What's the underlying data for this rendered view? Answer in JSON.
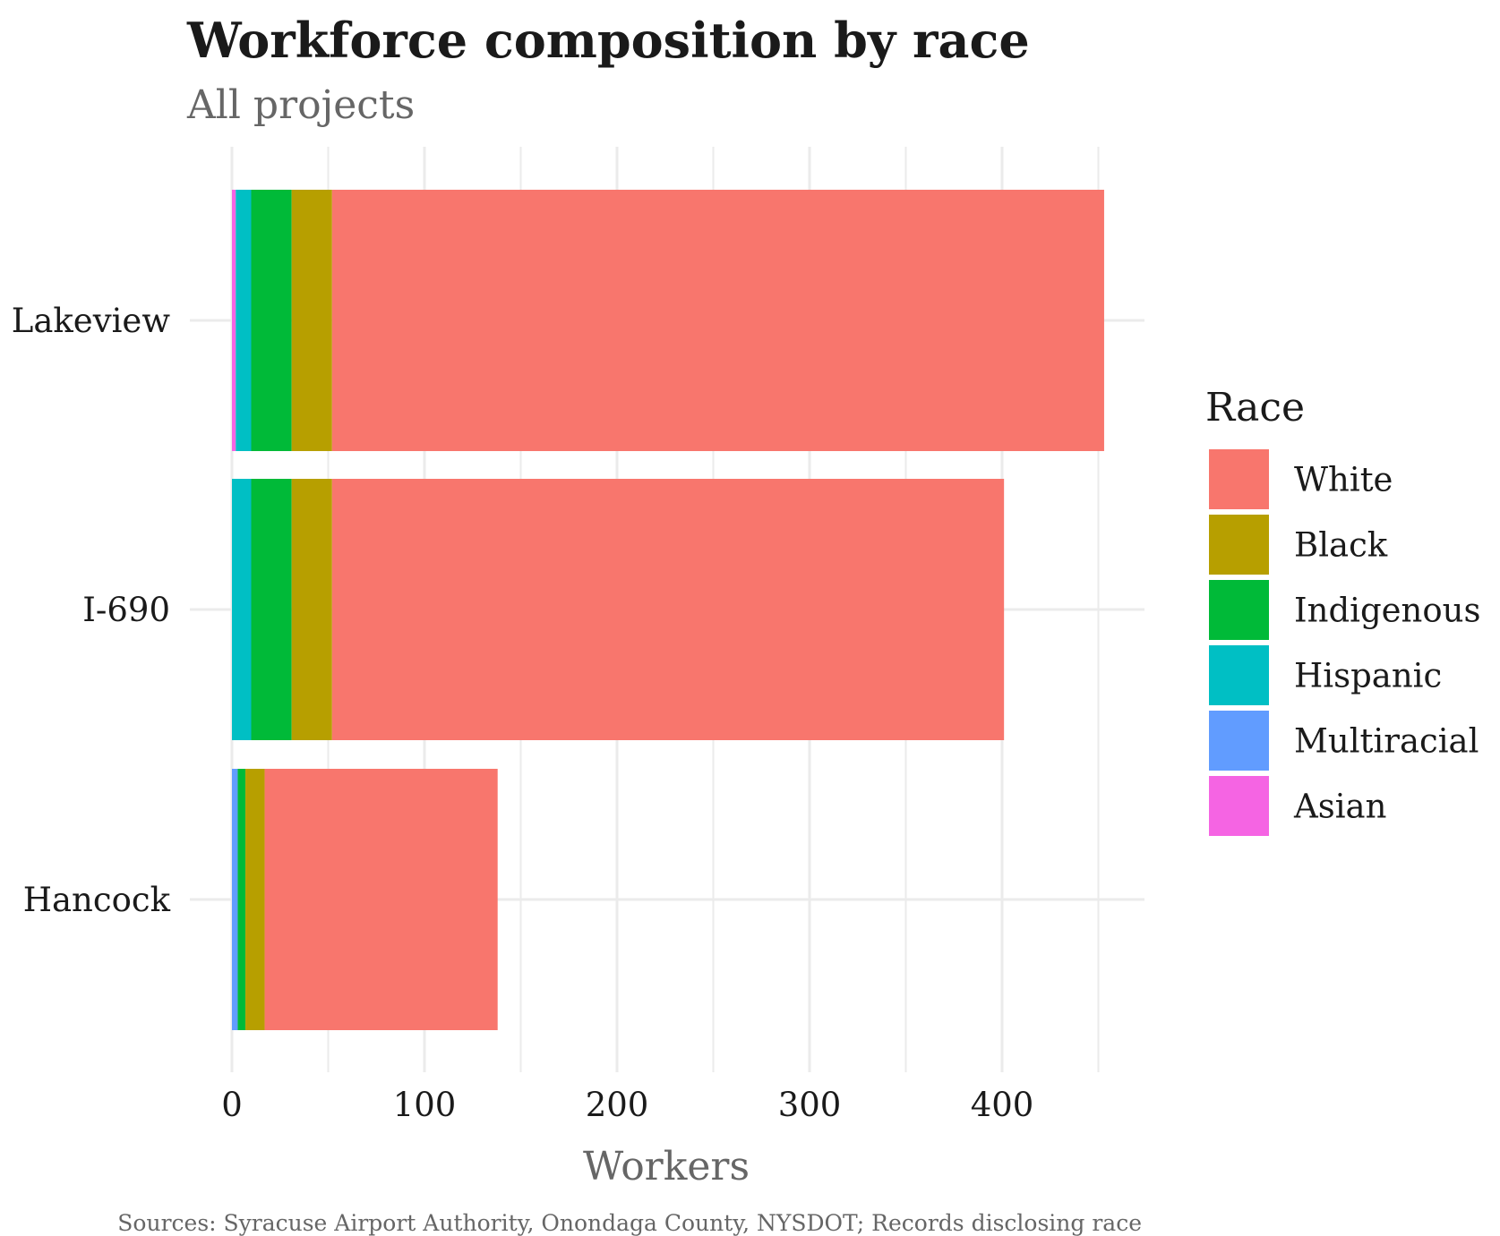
{
  "chart_data": {
    "type": "bar",
    "orientation": "horizontal",
    "stacked": true,
    "title": "Workforce composition by race",
    "subtitle": "All projects",
    "xlabel": "Workers",
    "ylabel": "",
    "caption": "Sources: Syracuse Airport Authority, Onondaga County, NYSDOT; Records disclosing race",
    "categories": [
      "Lakeview",
      "I-690",
      "Hancock"
    ],
    "xlim": [
      0,
      475
    ],
    "x_ticks": [
      0,
      100,
      200,
      300,
      400
    ],
    "grid": true,
    "legend": {
      "title": "Race",
      "position": "right",
      "entries": [
        "White",
        "Black",
        "Indigenous",
        "Hispanic",
        "Multiracial",
        "Asian"
      ]
    },
    "stack_order": [
      "Asian",
      "Multiracial",
      "Hispanic",
      "Indigenous",
      "Black",
      "White"
    ],
    "series": [
      {
        "name": "White",
        "color": "#F8766D",
        "values": [
          401,
          349,
          121
        ]
      },
      {
        "name": "Black",
        "color": "#B79F00",
        "values": [
          21,
          21,
          10
        ]
      },
      {
        "name": "Indigenous",
        "color": "#00BA38",
        "values": [
          21,
          21,
          4
        ]
      },
      {
        "name": "Hispanic",
        "color": "#00BFC4",
        "values": [
          8,
          10,
          0
        ]
      },
      {
        "name": "Multiracial",
        "color": "#619CFF",
        "values": [
          0,
          0,
          3
        ]
      },
      {
        "name": "Asian",
        "color": "#F564E3",
        "values": [
          2,
          0,
          0
        ]
      }
    ]
  }
}
